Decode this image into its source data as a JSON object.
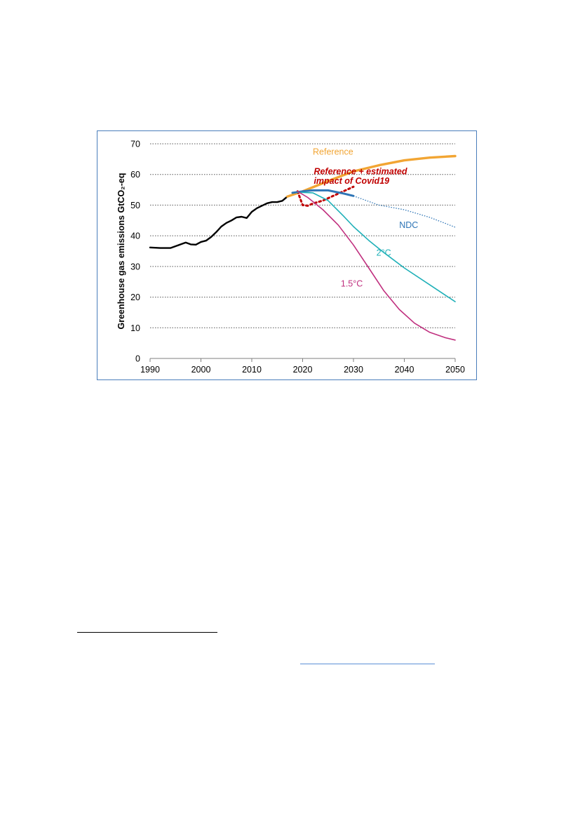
{
  "chart_data": {
    "type": "line",
    "ylabel": "Greenhouse gas emissions GtCO₂-eq",
    "xlabel": "",
    "xlim": [
      1990,
      2050
    ],
    "ylim": [
      0,
      70
    ],
    "x_ticks": [
      1990,
      2000,
      2010,
      2020,
      2030,
      2040,
      2050
    ],
    "y_ticks": [
      0,
      10,
      20,
      30,
      40,
      50,
      60,
      70
    ],
    "grid": "horizontal-dotted",
    "legend": "none",
    "series": [
      {
        "name": "",
        "color": "#000000",
        "style": "solid",
        "points": [
          [
            1990,
            36.2
          ],
          [
            1992,
            36.0
          ],
          [
            1994,
            36.0
          ],
          [
            1995,
            36.6
          ],
          [
            1996,
            37.2
          ],
          [
            1997,
            37.8
          ],
          [
            1998,
            37.2
          ],
          [
            1999,
            37.1
          ],
          [
            2000,
            38.0
          ],
          [
            2001,
            38.4
          ],
          [
            2002,
            39.6
          ],
          [
            2003,
            41.2
          ],
          [
            2004,
            43.0
          ],
          [
            2005,
            44.2
          ],
          [
            2006,
            45.0
          ],
          [
            2007,
            46.0
          ],
          [
            2008,
            46.2
          ],
          [
            2009,
            45.8
          ],
          [
            2010,
            47.8
          ],
          [
            2011,
            49.0
          ],
          [
            2012,
            49.8
          ],
          [
            2013,
            50.6
          ],
          [
            2014,
            51.0
          ],
          [
            2015,
            51.0
          ],
          [
            2016,
            51.4
          ],
          [
            2017,
            52.8
          ]
        ]
      },
      {
        "name": "Reference",
        "color": "#f2a533",
        "style": "solid-thick",
        "points": [
          [
            2017,
            52.8
          ],
          [
            2020,
            54.5
          ],
          [
            2023,
            56.5
          ],
          [
            2026,
            58.5
          ],
          [
            2030,
            61.0
          ],
          [
            2035,
            63.0
          ],
          [
            2040,
            64.6
          ],
          [
            2045,
            65.5
          ],
          [
            2050,
            66.0
          ]
        ]
      },
      {
        "name": "Reference + estimated impact of Covid19",
        "color": "#c00000",
        "style": "dotted",
        "points": [
          [
            2019,
            54.5
          ],
          [
            2020,
            50.0
          ],
          [
            2021,
            49.8
          ],
          [
            2022,
            50.5
          ],
          [
            2024,
            51.5
          ],
          [
            2026,
            53.0
          ],
          [
            2028,
            54.5
          ],
          [
            2030,
            56.0
          ]
        ]
      },
      {
        "name": "NDC",
        "color": "#2e75b6",
        "style": "solid-to-2030-then-dotted",
        "points": [
          [
            2018,
            54.0
          ],
          [
            2020,
            54.5
          ],
          [
            2022,
            54.8
          ],
          [
            2025,
            54.8
          ],
          [
            2028,
            53.8
          ],
          [
            2030,
            53.0
          ],
          [
            2035,
            50.0
          ],
          [
            2040,
            48.5
          ],
          [
            2045,
            46.0
          ],
          [
            2050,
            42.8
          ]
        ]
      },
      {
        "name": "2°C",
        "color": "#1fb0b8",
        "style": "solid",
        "points": [
          [
            2019,
            54.2
          ],
          [
            2022,
            54.0
          ],
          [
            2025,
            51.5
          ],
          [
            2028,
            46.5
          ],
          [
            2030,
            43.0
          ],
          [
            2033,
            38.5
          ],
          [
            2036,
            34.5
          ],
          [
            2040,
            29.5
          ],
          [
            2045,
            24.0
          ],
          [
            2050,
            18.5
          ]
        ]
      },
      {
        "name": "1.5°C",
        "color": "#c0307f",
        "style": "solid",
        "points": [
          [
            2019,
            54.5
          ],
          [
            2021,
            52.5
          ],
          [
            2024,
            48.5
          ],
          [
            2027,
            43.5
          ],
          [
            2030,
            37.0
          ],
          [
            2033,
            29.5
          ],
          [
            2036,
            22.0
          ],
          [
            2039,
            16.0
          ],
          [
            2042,
            11.5
          ],
          [
            2045,
            8.5
          ],
          [
            2048,
            6.8
          ],
          [
            2050,
            6.0
          ]
        ]
      }
    ],
    "annotations": [
      {
        "text": "Reference",
        "color": "#f2a533",
        "at": [
          2022,
          66.5
        ]
      },
      {
        "text": "Reference + estimated",
        "color": "#c00000",
        "at": [
          2022.2,
          60.0
        ],
        "italic_bold": true
      },
      {
        "text": "impact of Covid19",
        "color": "#c00000",
        "at": [
          2022.2,
          57.0
        ],
        "italic_bold": true
      },
      {
        "text": "NDC",
        "color": "#2e75b6",
        "at": [
          2039,
          42.5
        ]
      },
      {
        "text": "2°C",
        "color": "#1fb0b8",
        "at": [
          2034.5,
          33.5
        ]
      },
      {
        "text": "1.5°C",
        "color": "#c0307f",
        "at": [
          2027.5,
          23.5
        ]
      }
    ]
  }
}
